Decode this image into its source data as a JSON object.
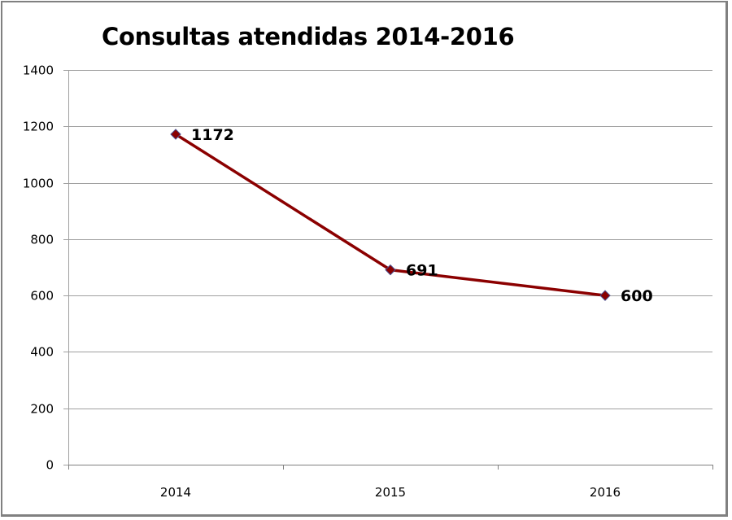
{
  "chart_data": {
    "type": "line",
    "title": "Consultas atendidas 2014-2016",
    "xlabel": "",
    "ylabel": "",
    "categories": [
      "2014",
      "2015",
      "2016"
    ],
    "series": [
      {
        "name": "Consultas atendidas",
        "values": [
          1172,
          691,
          600
        ],
        "color": "#8B0000",
        "marker": "diamond"
      }
    ],
    "data_labels": [
      "1172",
      "691",
      "600"
    ],
    "yticks": [
      "0",
      "200",
      "400",
      "600",
      "800",
      "1000",
      "1200",
      "1400"
    ],
    "ylim": [
      0,
      1400
    ],
    "grid": true,
    "legend": "none"
  },
  "colors": {
    "line": "#8B0000",
    "marker_edge": "#4a4a8a",
    "grid": "#a0a0a0",
    "border": "#808080"
  }
}
